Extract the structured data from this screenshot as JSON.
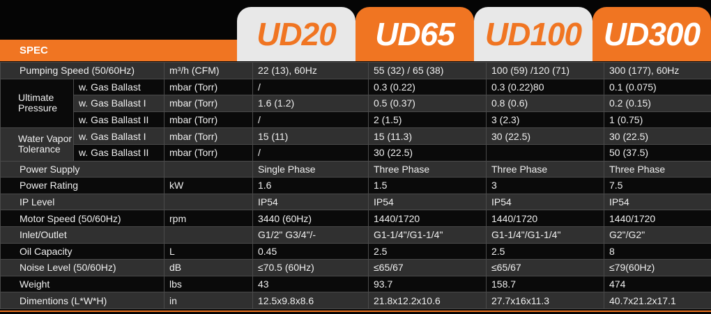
{
  "header": {
    "spec": "SPEC",
    "models": [
      "UD20",
      "UD65",
      "UD100",
      "UD300"
    ]
  },
  "table": {
    "rows": [
      {
        "label": "Pumping Speed (50/60Hz)",
        "unit": "m³/h (CFM)",
        "values": [
          "22 (13), 60Hz",
          "55 (32) / 65 (38)",
          "100 (59) /120 (71)",
          "300 (177), 60Hz"
        ]
      },
      {
        "group": "Ultimate Pressure",
        "sub": "w. Gas Ballast",
        "unit": "mbar (Torr)",
        "values": [
          "/",
          "0.3 (0.22)",
          "0.3 (0.22)80",
          "0.1 (0.075)"
        ]
      },
      {
        "sub": "w. Gas Ballast I",
        "unit": "mbar (Torr)",
        "values": [
          "1.6 (1.2)",
          "0.5 (0.37)",
          "0.8 (0.6)",
          "0.2 (0.15)"
        ]
      },
      {
        "sub": "w. Gas Ballast II",
        "unit": "mbar (Torr)",
        "values": [
          "/",
          "2 (1.5)",
          "3 (2.3)",
          "1 (0.75)"
        ]
      },
      {
        "group": "Water Vapor Tolerance",
        "sub": "w. Gas Ballast I",
        "unit": "mbar (Torr)",
        "values": [
          "15 (11)",
          "15 (11.3)",
          "30 (22.5)",
          "30 (22.5)"
        ]
      },
      {
        "sub": "w. Gas Ballast II",
        "unit": "mbar (Torr)",
        "values": [
          "/",
          "30 (22.5)",
          null,
          "50 (37.5)"
        ]
      },
      {
        "label": "Power Supply",
        "unit": null,
        "values": [
          "Single Phase",
          "Three Phase",
          "Three Phase",
          "Three Phase"
        ]
      },
      {
        "label": "Power Rating",
        "unit": "kW",
        "values": [
          "1.6",
          "1.5",
          "3",
          "7.5"
        ]
      },
      {
        "label": "IP Level",
        "unit": null,
        "values": [
          "IP54",
          "IP54",
          "IP54",
          "IP54"
        ]
      },
      {
        "label": "Motor Speed (50/60Hz)",
        "unit": "rpm",
        "values": [
          "3440 (60Hz)",
          "1440/1720",
          "1440/1720",
          "1440/1720"
        ]
      },
      {
        "label": "Inlet/Outlet",
        "unit": null,
        "values": [
          "G1/2\" G3/4\"/-",
          "G1-1/4\"/G1-1/4\"",
          "G1-1/4\"/G1-1/4\"",
          "G2\"/G2\""
        ]
      },
      {
        "label": "Oil Capacity",
        "unit": "L",
        "values": [
          "0.45",
          "2.5",
          "2.5",
          "8"
        ]
      },
      {
        "label": "Noise Level (50/60Hz)",
        "unit": "dB",
        "values": [
          "≤70.5 (60Hz)",
          "≤65/67",
          "≤65/67",
          "≤79(60Hz)"
        ]
      },
      {
        "label": "Weight",
        "unit": "lbs",
        "values": [
          "43",
          "93.7",
          "158.7",
          "474"
        ]
      },
      {
        "label": "Dimentions (L*W*H)",
        "unit": "in",
        "values": [
          "12.5x9.8x8.6",
          "21.8x12.2x10.6",
          "27.7x16x11.3",
          "40.7x21.2x17.1"
        ]
      }
    ]
  }
}
